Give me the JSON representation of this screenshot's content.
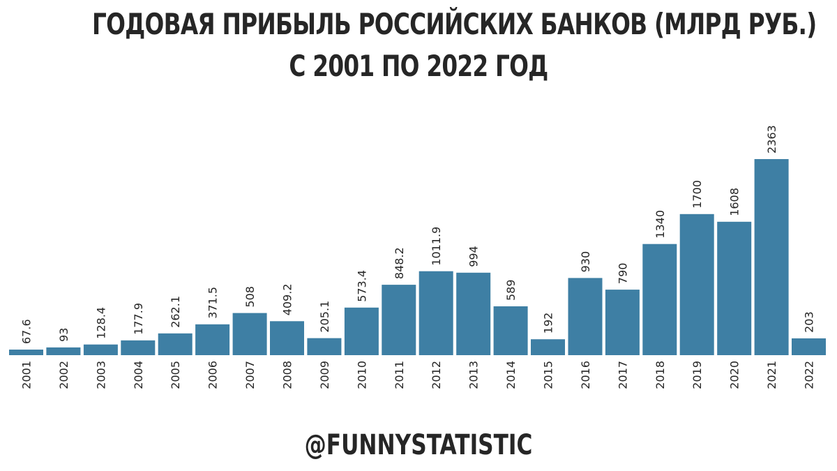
{
  "header": {
    "title_line1": "ГОДОВАЯ ПРИБЫЛЬ РОССИЙСКИХ БАНКОВ (МЛРД РУБ.)",
    "title_line2": "С 2001 ПО 2022 ГОД"
  },
  "footer": {
    "watermark": "@FUNNYSTATISTIC"
  },
  "colors": {
    "bar": "#3e7fa4",
    "text": "#262626"
  },
  "chart_data": {
    "type": "bar",
    "title": "ГОДОВАЯ ПРИБЫЛЬ РОССИЙСКИХ БАНКОВ (МЛРД РУБ.) С 2001 ПО 2022 ГОД",
    "xlabel": "",
    "ylabel": "",
    "categories": [
      "2001",
      "2002",
      "2003",
      "2004",
      "2005",
      "2006",
      "2007",
      "2008",
      "2009",
      "2010",
      "2011",
      "2012",
      "2013",
      "2014",
      "2015",
      "2016",
      "2017",
      "2018",
      "2019",
      "2020",
      "2021",
      "2022"
    ],
    "values": [
      67.6,
      93,
      128.4,
      177.9,
      262.1,
      371.5,
      508,
      409.2,
      205.1,
      573.4,
      848.2,
      1011.9,
      994,
      589,
      192,
      930,
      790,
      1340,
      1700,
      1608,
      2363,
      203
    ],
    "value_labels": [
      "67.6",
      "93",
      "128.4",
      "177.9",
      "262.1",
      "371.5",
      "508",
      "409.2",
      "205.1",
      "573.4",
      "848.2",
      "1011.9",
      "994",
      "589",
      "192",
      "930",
      "790",
      "1340",
      "1700",
      "1608",
      "2363",
      "203"
    ],
    "ylim": [
      0,
      2363
    ],
    "grid": false,
    "legend": "none"
  }
}
